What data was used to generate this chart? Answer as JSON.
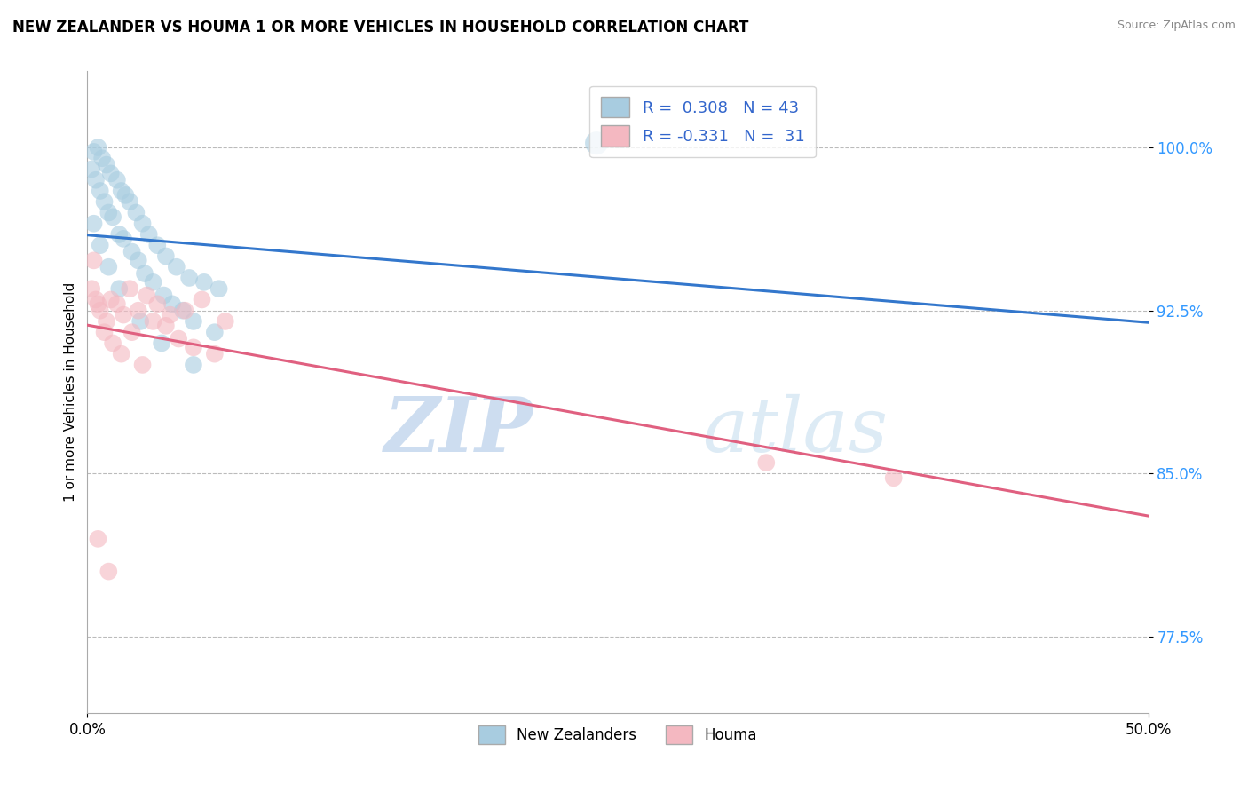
{
  "title": "NEW ZEALANDER VS HOUMA 1 OR MORE VEHICLES IN HOUSEHOLD CORRELATION CHART",
  "source": "Source: ZipAtlas.com",
  "xmin": 0.0,
  "xmax": 50.0,
  "ymin": 74.0,
  "ymax": 103.5,
  "ytick_values": [
    77.5,
    85.0,
    92.5,
    100.0
  ],
  "watermark_zip": "ZIP",
  "watermark_atlas": "atlas",
  "legend_label1": "New Zealanders",
  "legend_label2": "Houma",
  "blue_color": "#a8cce0",
  "pink_color": "#f4b8c1",
  "line_blue": "#3377cc",
  "line_pink": "#e06080",
  "nz_x": [
    0.3,
    0.5,
    0.7,
    0.9,
    1.1,
    1.4,
    1.6,
    1.8,
    2.0,
    2.3,
    2.6,
    2.9,
    3.3,
    3.7,
    4.2,
    4.8,
    5.5,
    6.2,
    0.2,
    0.4,
    0.6,
    0.8,
    1.0,
    1.2,
    1.5,
    1.7,
    2.1,
    2.4,
    2.7,
    3.1,
    3.6,
    4.0,
    4.5,
    5.0,
    6.0,
    0.3,
    0.6,
    1.0,
    1.5,
    2.5,
    3.5,
    5.0,
    24.0
  ],
  "nz_y": [
    99.8,
    100.0,
    99.5,
    99.2,
    98.8,
    98.5,
    98.0,
    97.8,
    97.5,
    97.0,
    96.5,
    96.0,
    95.5,
    95.0,
    94.5,
    94.0,
    93.8,
    93.5,
    99.0,
    98.5,
    98.0,
    97.5,
    97.0,
    96.8,
    96.0,
    95.8,
    95.2,
    94.8,
    94.2,
    93.8,
    93.2,
    92.8,
    92.5,
    92.0,
    91.5,
    96.5,
    95.5,
    94.5,
    93.5,
    92.0,
    91.0,
    90.0,
    100.2
  ],
  "nz_sizes": [
    200,
    200,
    200,
    200,
    200,
    200,
    200,
    200,
    200,
    200,
    200,
    200,
    200,
    200,
    200,
    200,
    200,
    200,
    200,
    200,
    200,
    200,
    200,
    200,
    200,
    200,
    200,
    200,
    200,
    200,
    200,
    200,
    200,
    200,
    200,
    200,
    200,
    200,
    200,
    200,
    200,
    200,
    350
  ],
  "houma_x": [
    0.2,
    0.4,
    0.6,
    0.9,
    1.1,
    1.4,
    1.7,
    2.0,
    2.4,
    2.8,
    3.3,
    3.9,
    4.6,
    5.4,
    6.5,
    0.3,
    0.5,
    0.8,
    1.2,
    1.6,
    2.1,
    2.6,
    3.1,
    3.7,
    4.3,
    5.0,
    6.0,
    0.5,
    1.0,
    32.0,
    38.0
  ],
  "houma_y": [
    93.5,
    93.0,
    92.5,
    92.0,
    93.0,
    92.8,
    92.3,
    93.5,
    92.5,
    93.2,
    92.8,
    92.3,
    92.5,
    93.0,
    92.0,
    94.8,
    92.8,
    91.5,
    91.0,
    90.5,
    91.5,
    90.0,
    92.0,
    91.8,
    91.2,
    90.8,
    90.5,
    82.0,
    80.5,
    85.5,
    84.8
  ],
  "houma_sizes": [
    200,
    200,
    200,
    200,
    200,
    200,
    200,
    200,
    200,
    200,
    200,
    200,
    200,
    200,
    200,
    200,
    200,
    200,
    200,
    200,
    200,
    200,
    200,
    200,
    200,
    200,
    200,
    200,
    200,
    200,
    200
  ]
}
